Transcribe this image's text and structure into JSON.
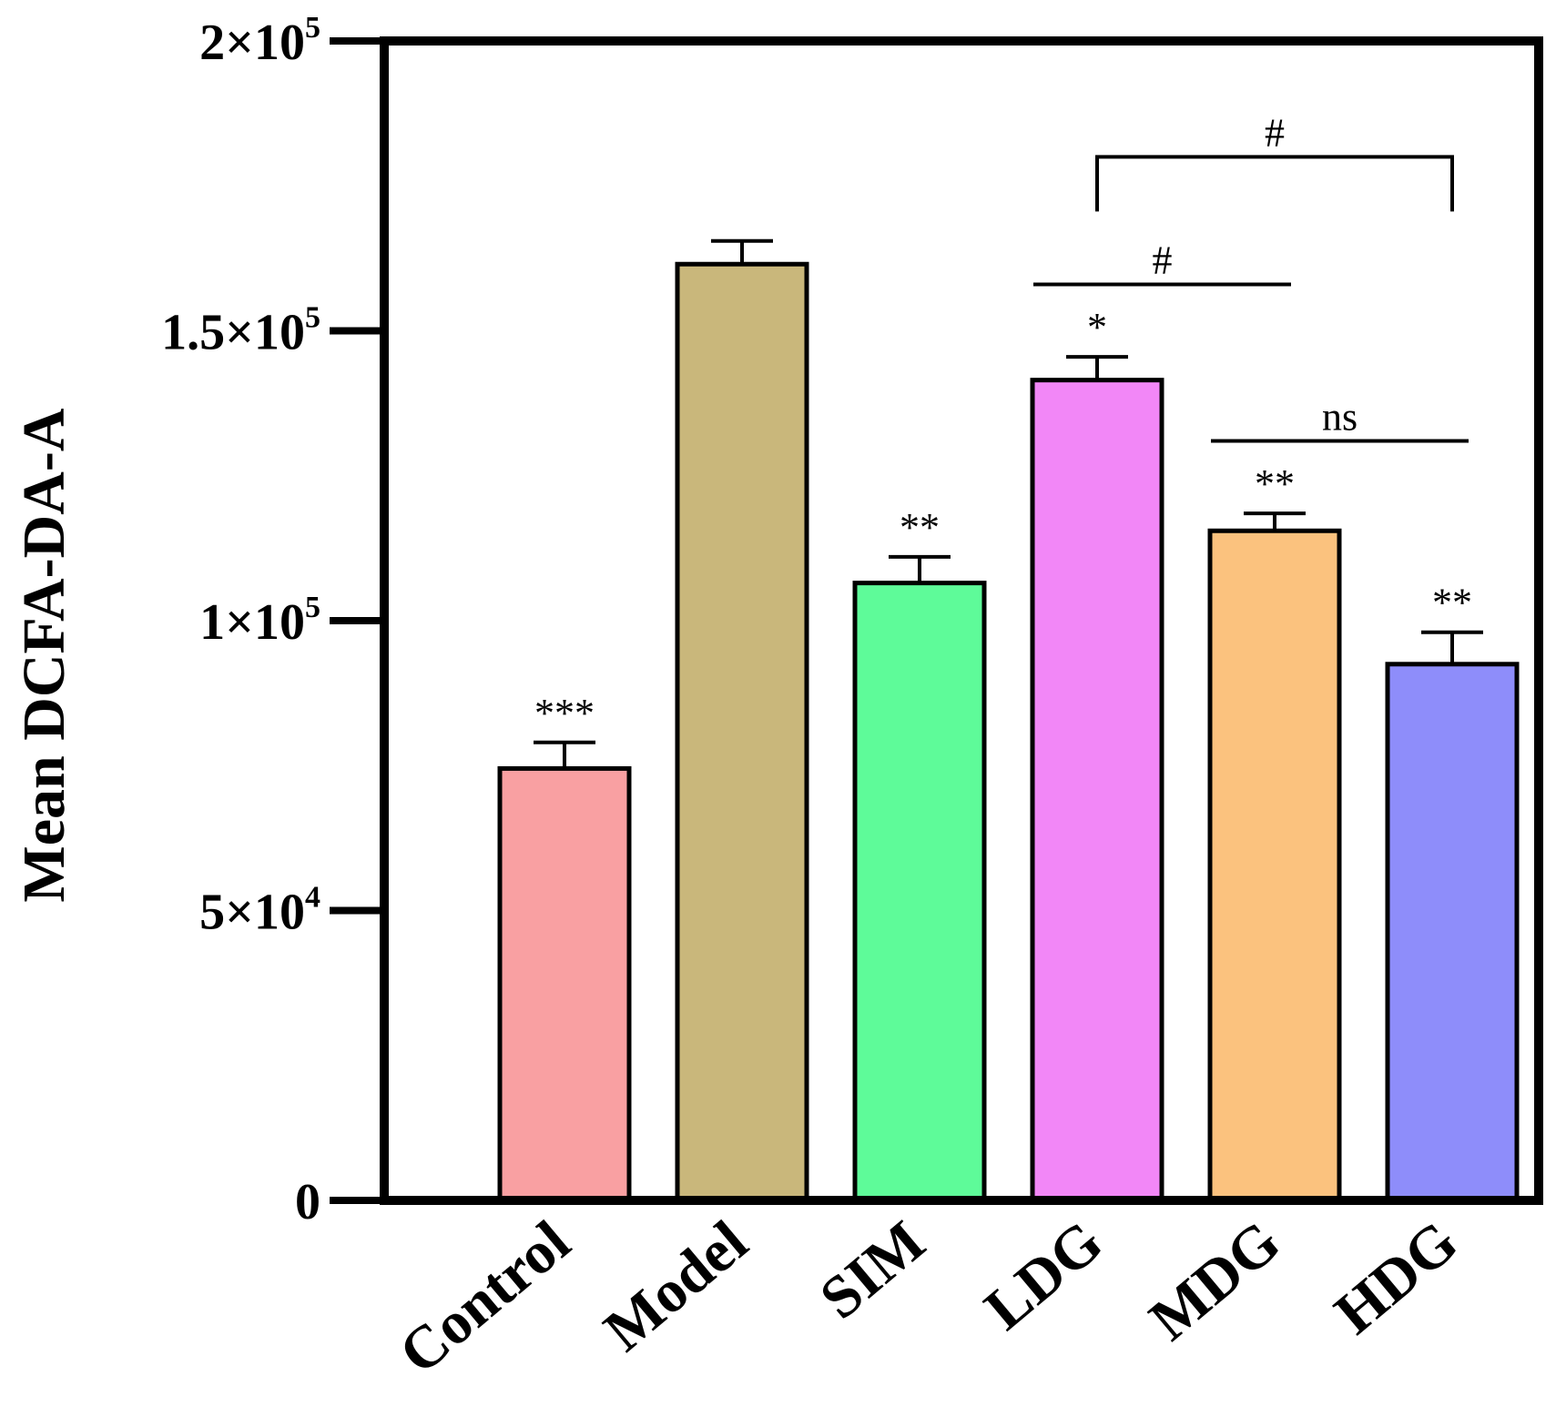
{
  "chart_data": {
    "type": "bar",
    "title": "",
    "xlabel": "",
    "ylabel": "Mean DCFA-DA-A",
    "ylim": [
      0,
      200000
    ],
    "yticks": [
      {
        "value": 0,
        "mantissa": "0",
        "exponent": ""
      },
      {
        "value": 50000,
        "mantissa": "5×10",
        "exponent": "4"
      },
      {
        "value": 100000,
        "mantissa": "1×10",
        "exponent": "5"
      },
      {
        "value": 150000,
        "mantissa": "1.5×10",
        "exponent": "5"
      },
      {
        "value": 200000,
        "mantissa": "2×10",
        "exponent": "5"
      }
    ],
    "categories": [
      "Control",
      "Model",
      "SIM",
      "LDG",
      "MDG",
      "HDG"
    ],
    "values": [
      74500,
      161500,
      106500,
      141500,
      115500,
      92500
    ],
    "errors": [
      4500,
      4000,
      4500,
      4000,
      3000,
      5500
    ],
    "colors": [
      "#F9A0A2",
      "#C9B77B",
      "#5EFB99",
      "#F287F7",
      "#FBC27E",
      "#8E8DFA"
    ],
    "significance": [
      "***",
      "",
      "**",
      "*",
      "**",
      "**"
    ],
    "comparisons": [
      {
        "from": "LDG",
        "to": "HDG",
        "label": "#",
        "style": "bracket",
        "y": 180000
      },
      {
        "from": "LDG",
        "to": "MDG",
        "label": "#",
        "style": "line",
        "y": 158000
      },
      {
        "from": "MDG",
        "to": "HDG",
        "label": "ns",
        "style": "line",
        "y": 131000
      }
    ]
  }
}
